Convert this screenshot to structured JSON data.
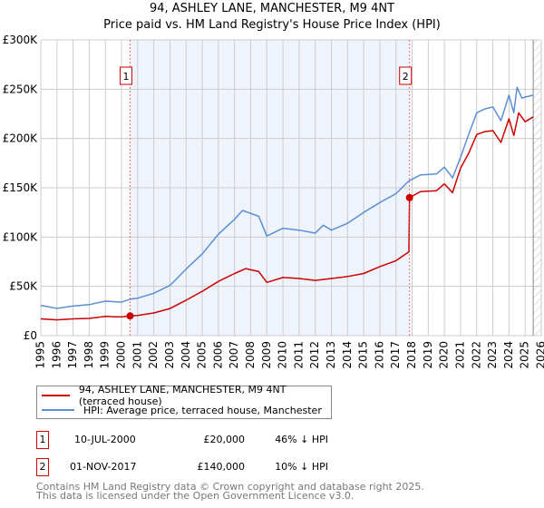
{
  "title": "94, ASHLEY LANE, MANCHESTER, M9 4NT",
  "subtitle": "Price paid vs. HM Land Registry's House Price Index (HPI)",
  "colors": {
    "property": "#cc0000",
    "hpi": "#5b8fd4",
    "shade": "#eef3fc",
    "grid": "#cccccc"
  },
  "chart_data": {
    "type": "line",
    "title": "94, ASHLEY LANE, MANCHESTER, M9 4NT - Price paid vs. HM Land Registry's House Price Index (HPI)",
    "xlabel": "",
    "ylabel": "",
    "xlim": [
      1995,
      2026
    ],
    "ylim": [
      0,
      300000
    ],
    "grid": true,
    "legend_position": "below",
    "x_ticks": [
      "1995",
      "1996",
      "1997",
      "1998",
      "1999",
      "2000",
      "2001",
      "2002",
      "2003",
      "2004",
      "2005",
      "2006",
      "2007",
      "2008",
      "2009",
      "2010",
      "2011",
      "2012",
      "2013",
      "2014",
      "2015",
      "2016",
      "2017",
      "2018",
      "2019",
      "2020",
      "2021",
      "2022",
      "2023",
      "2024",
      "2025",
      "2026"
    ],
    "y_ticks": [
      {
        "v": 0,
        "label": "£0"
      },
      {
        "v": 50000,
        "label": "£50K"
      },
      {
        "v": 100000,
        "label": "£100K"
      },
      {
        "v": 150000,
        "label": "£150K"
      },
      {
        "v": 200000,
        "label": "£200K"
      },
      {
        "v": 250000,
        "label": "£250K"
      },
      {
        "v": 300000,
        "label": "£300K"
      }
    ],
    "series": [
      {
        "name": "94, ASHLEY LANE, MANCHESTER, M9 4NT (terraced house)",
        "color": "#cc0000",
        "x": [
          1995,
          1996,
          1997,
          1998,
          1999,
          2000,
          2000.53,
          2001,
          2002,
          2003,
          2004,
          2005,
          2006,
          2007,
          2007.7,
          2008.5,
          2009,
          2010,
          2011,
          2012,
          2013,
          2014,
          2015,
          2016,
          2017,
          2017.8,
          2017.84,
          2018.5,
          2019.5,
          2020,
          2020.5,
          2021,
          2021.5,
          2022,
          2022.5,
          2023,
          2023.5,
          2024,
          2024.3,
          2024.6,
          2025,
          2025.5
        ],
        "y": [
          17000,
          16000,
          17000,
          17500,
          19500,
          19000,
          20000,
          20500,
          23000,
          27500,
          36000,
          45000,
          55000,
          63000,
          68000,
          65000,
          54000,
          59000,
          58000,
          56000,
          58000,
          60000,
          63000,
          70000,
          76000,
          85000,
          140000,
          146000,
          147000,
          154000,
          145000,
          170000,
          185000,
          204000,
          207000,
          208000,
          196000,
          220000,
          203000,
          226000,
          217000,
          222000
        ]
      },
      {
        "name": "HPI: Average price, terraced house, Manchester",
        "color": "#5b8fd4",
        "x": [
          1995,
          1996,
          1997,
          1998,
          1999,
          2000,
          2000.53,
          2001,
          2002,
          2003,
          2004,
          2005,
          2006,
          2007,
          2007.5,
          2008.5,
          2009,
          2010,
          2011,
          2012,
          2012.5,
          2013,
          2014,
          2015,
          2016,
          2017,
          2017.8,
          2018.5,
          2019.5,
          2020,
          2020.5,
          2021,
          2021.5,
          2022,
          2022.5,
          2023,
          2023.5,
          2024,
          2024.3,
          2024.5,
          2024.8,
          2025,
          2025.5
        ],
        "y": [
          30700,
          27600,
          30000,
          31500,
          35000,
          34000,
          37000,
          38000,
          43000,
          51000,
          67500,
          83000,
          103000,
          118000,
          127000,
          121000,
          101000,
          109000,
          107000,
          104000,
          112000,
          107000,
          114000,
          125000,
          135000,
          144000,
          157000,
          163000,
          164000,
          171000,
          160000,
          181000,
          204000,
          226000,
          230000,
          232000,
          218000,
          244000,
          226000,
          252000,
          241000,
          242000,
          244000
        ]
      }
    ],
    "sales": [
      {
        "label": "1",
        "x": 2000.53,
        "y": 20000
      },
      {
        "label": "2",
        "x": 2017.84,
        "y": 140000
      }
    ],
    "forecast_hatch_from": 2025.5
  },
  "legend": {
    "property": "94, ASHLEY LANE, MANCHESTER, M9 4NT (terraced house)",
    "hpi": "HPI: Average price, terraced house, Manchester"
  },
  "sales_table": [
    {
      "num": "1",
      "date": "10-JUL-2000",
      "price": "£20,000",
      "hpi": "46% ↓ HPI"
    },
    {
      "num": "2",
      "date": "01-NOV-2017",
      "price": "£140,000",
      "hpi": "10% ↓ HPI"
    }
  ],
  "footer": {
    "line1": "Contains HM Land Registry data © Crown copyright and database right 2025.",
    "line2": "This data is licensed under the Open Government Licence v3.0."
  }
}
